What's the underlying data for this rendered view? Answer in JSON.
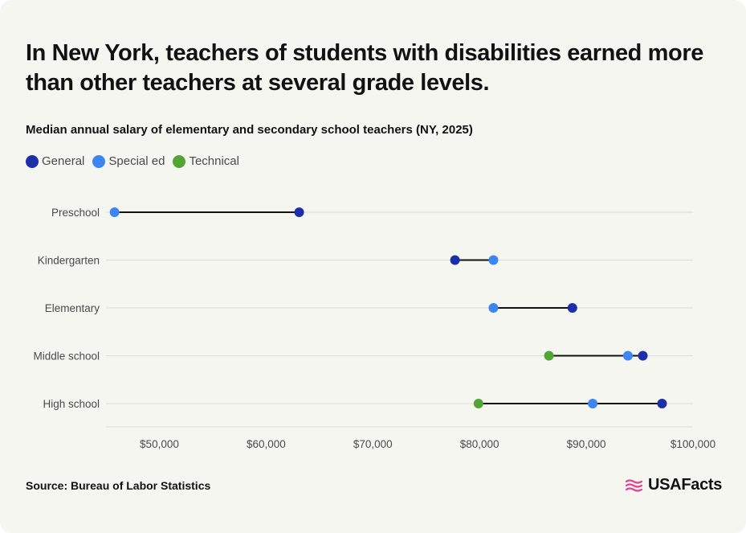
{
  "title": "In New York, teachers of students with disabilities earned more than other teachers at several grade levels.",
  "subtitle": "Median annual salary of elementary and secondary school teachers (NY, 2025)",
  "source": "Source: Bureau of Labor Statistics",
  "brand": "USAFacts",
  "colors": {
    "General": "#1c2fa8",
    "Special ed": "#3d86f2",
    "Technical": "#52a535",
    "connector": "#111111",
    "gridline": "#dcdcd6",
    "brand_icon": "#e0458f"
  },
  "chart_data": {
    "type": "dot-range",
    "series_order": [
      "General",
      "Special ed",
      "Technical"
    ],
    "x_ticks": [
      {
        "value": 50000,
        "label": "$50,000"
      },
      {
        "value": 60000,
        "label": "$60,000"
      },
      {
        "value": 70000,
        "label": "$70,000"
      },
      {
        "value": 80000,
        "label": "$80,000"
      },
      {
        "value": 90000,
        "label": "$90,000"
      },
      {
        "value": 100000,
        "label": "$100,000"
      }
    ],
    "xlim": [
      45000,
      100000
    ],
    "grid": true,
    "legend_position": "top-left",
    "categories": [
      {
        "label": "Preschool",
        "points": [
          {
            "series": "Special ed",
            "value": 45800
          },
          {
            "series": "General",
            "value": 63100
          }
        ]
      },
      {
        "label": "Kindergarten",
        "points": [
          {
            "series": "General",
            "value": 77700
          },
          {
            "series": "Special ed",
            "value": 81300
          }
        ]
      },
      {
        "label": "Elementary",
        "points": [
          {
            "series": "Special ed",
            "value": 81300
          },
          {
            "series": "General",
            "value": 88700
          }
        ]
      },
      {
        "label": "Middle school",
        "points": [
          {
            "series": "Technical",
            "value": 86500
          },
          {
            "series": "Special ed",
            "value": 93900
          },
          {
            "series": "General",
            "value": 95300
          }
        ]
      },
      {
        "label": "High school",
        "points": [
          {
            "series": "Technical",
            "value": 79900
          },
          {
            "series": "Special ed",
            "value": 90600
          },
          {
            "series": "General",
            "value": 97100
          }
        ]
      }
    ]
  }
}
